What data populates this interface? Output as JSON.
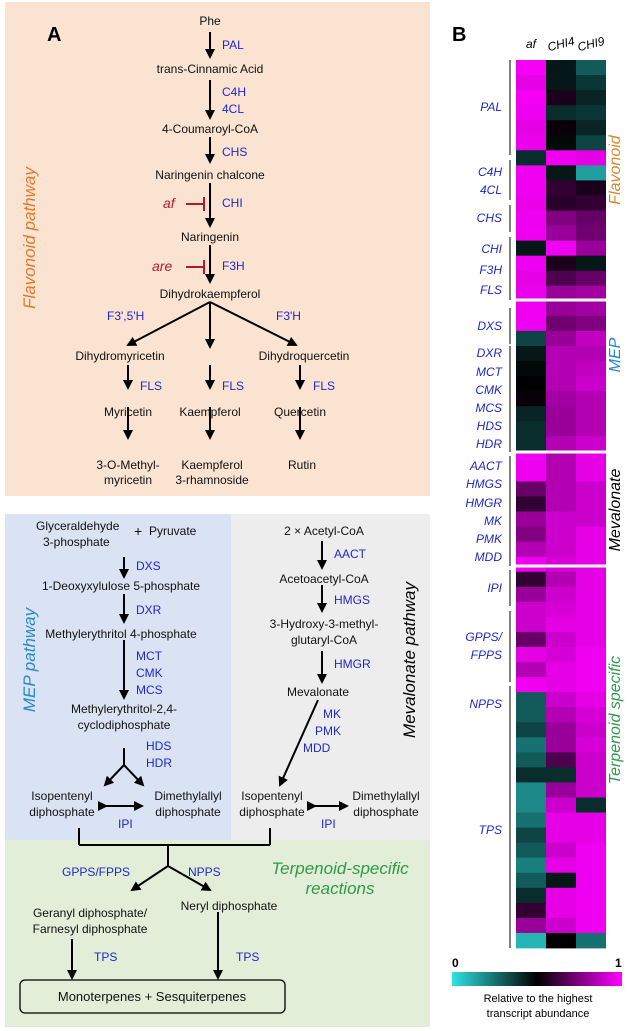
{
  "panel_a": {
    "label": "A",
    "flavonoid": {
      "side_label": "Flavonoid pathway",
      "compounds": [
        "Phe",
        "trans-Cinnamic Acid",
        "4-Coumaroyl-CoA",
        "Naringenin chalcone",
        "Naringenin",
        "Dihydrokaempferol",
        "Dihydromyricetin",
        "Dihydroquercetin",
        "Myricetin",
        "Kaempferol",
        "Quercetin",
        "3-O-Methyl-",
        "myricetin",
        "Kaempferol",
        "3-rhamnoside",
        "Rutin"
      ],
      "enzymes": [
        "PAL",
        "C4H",
        "4CL",
        "CHS",
        "CHI",
        "F3H",
        "F3',5'H",
        "F3'H",
        "FLS",
        "FLS",
        "FLS"
      ],
      "mutants": [
        "af",
        "are"
      ]
    },
    "mep": {
      "side_label": "MEP pathway",
      "compounds": [
        "Glyceraldehyde",
        "3-phosphate",
        "+",
        "Pyruvate",
        "1-Deoxyxylulose 5-phosphate",
        "Methylerythritol 4-phosphate",
        "Methylerythritol-2,4-",
        "cyclodiphosphate",
        "Isopentenyl",
        "diphosphate",
        "Dimethylallyl",
        "diphosphate"
      ],
      "enzymes": [
        "DXS",
        "DXR",
        "MCT",
        "CMK",
        "MCS",
        "HDS",
        "HDR",
        "IPI"
      ]
    },
    "mevalonate": {
      "side_label": "Mevalonate pathway",
      "compounds": [
        "2 × Acetyl-CoA",
        "Acetoacetyl-CoA",
        "3-Hydroxy-3-methyl-",
        "glutaryl-CoA",
        "Mevalonate",
        "Isopentenyl",
        "diphosphate",
        "Dimethylallyl",
        "diphosphate"
      ],
      "enzymes": [
        "AACT",
        "HMGS",
        "HMGR",
        "MK",
        "PMK",
        "MDD",
        "IPI"
      ]
    },
    "terpenoid": {
      "title_line1": "Terpenoid-specific",
      "title_line2": "reactions",
      "compounds": [
        "Geranyl diphosphate/",
        "Farnesyl diphosphate",
        "Neryl diphosphate",
        "Monoterpenes + Sesquiterpenes"
      ],
      "enzymes": [
        "GPPS/FPPS",
        "NPPS",
        "TPS",
        "TPS"
      ]
    }
  },
  "panel_b": {
    "label": "B",
    "columns": [
      "af",
      "CHI4",
      "CHI9"
    ],
    "genes": [
      "PAL",
      "C4H",
      "4CL",
      "CHS",
      "CHI",
      "F3H",
      "FLS",
      "DXS",
      "DXR",
      "MCT",
      "CMK",
      "MCS",
      "HDS",
      "HDR",
      "AACT",
      "HMGS",
      "HMGR",
      "MK",
      "PMK",
      "MDD",
      "IPI",
      "GPPS/",
      "FPPS",
      "NPPS",
      "TPS"
    ],
    "group_labels": [
      "Flavonoid",
      "MEP",
      "Mevalonate",
      "Terpenoid specific"
    ],
    "colorbar": {
      "min_label": "0",
      "max_label": "1",
      "caption_line1": "Relative to the highest",
      "caption_line2": "transcript abundance"
    },
    "colors": {
      "low": "#2fe2e2",
      "mid": "#000000",
      "high": "#ff00ff"
    }
  },
  "heatmap_values": [
    [
      0.98,
      0.45,
      0.3
    ],
    [
      0.95,
      0.45,
      0.38
    ],
    [
      0.98,
      0.55,
      0.42
    ],
    [
      0.97,
      0.4,
      0.38
    ],
    [
      0.95,
      0.52,
      0.42
    ],
    [
      0.96,
      0.48,
      0.35
    ],
    [
      0.4,
      0.97,
      0.95
    ],
    [
      0.97,
      0.45,
      0.15
    ],
    [
      0.97,
      0.6,
      0.55
    ],
    [
      0.96,
      0.58,
      0.6
    ],
    [
      0.97,
      0.75,
      0.7
    ],
    [
      0.97,
      0.8,
      0.72
    ],
    [
      0.45,
      0.97,
      0.8
    ],
    [
      0.97,
      0.55,
      0.45
    ],
    [
      0.95,
      0.65,
      0.7
    ],
    [
      0.96,
      0.8,
      0.82
    ],
    [
      0.97,
      0.8,
      0.82
    ],
    [
      0.97,
      0.72,
      0.75
    ],
    [
      0.35,
      0.8,
      0.88
    ],
    [
      0.45,
      0.85,
      0.85
    ],
    [
      0.48,
      0.85,
      0.88
    ],
    [
      0.5,
      0.85,
      0.9
    ],
    [
      0.52,
      0.82,
      0.85
    ],
    [
      0.42,
      0.8,
      0.85
    ],
    [
      0.4,
      0.8,
      0.85
    ],
    [
      0.4,
      0.85,
      0.9
    ],
    [
      0.97,
      0.85,
      0.95
    ],
    [
      0.97,
      0.85,
      0.95
    ],
    [
      0.7,
      0.85,
      0.9
    ],
    [
      0.6,
      0.85,
      0.9
    ],
    [
      0.8,
      0.9,
      0.9
    ],
    [
      0.75,
      0.9,
      0.95
    ],
    [
      0.85,
      0.9,
      0.95
    ],
    [
      0.97,
      0.92,
      0.95
    ],
    [
      0.6,
      0.85,
      0.95
    ],
    [
      0.8,
      0.9,
      0.95
    ],
    [
      0.9,
      0.92,
      0.95
    ],
    [
      0.9,
      0.95,
      0.95
    ],
    [
      0.7,
      0.9,
      0.95
    ],
    [
      0.95,
      0.92,
      0.97
    ],
    [
      0.85,
      0.95,
      0.97
    ],
    [
      0.97,
      0.95,
      0.97
    ],
    [
      0.3,
      0.9,
      0.95
    ],
    [
      0.3,
      0.85,
      0.92
    ],
    [
      0.35,
      0.8,
      0.9
    ],
    [
      0.25,
      0.8,
      0.92
    ],
    [
      0.3,
      0.65,
      0.9
    ],
    [
      0.4,
      0.4,
      0.9
    ],
    [
      0.2,
      0.8,
      0.9
    ],
    [
      0.2,
      0.9,
      0.4
    ],
    [
      0.25,
      0.95,
      0.95
    ],
    [
      0.35,
      0.95,
      0.95
    ],
    [
      0.3,
      0.9,
      0.97
    ],
    [
      0.22,
      0.95,
      0.97
    ],
    [
      0.3,
      0.45,
      0.97
    ],
    [
      0.4,
      0.95,
      0.97
    ],
    [
      0.6,
      0.95,
      0.97
    ],
    [
      0.8,
      0.9,
      0.97
    ],
    [
      0.1,
      0.5,
      0.25
    ]
  ]
}
